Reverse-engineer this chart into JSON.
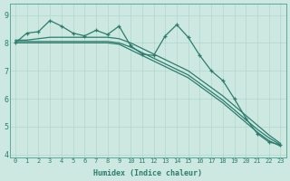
{
  "xlabel": "Humidex (Indice chaleur)",
  "bg_color": "#cce8e0",
  "line_color": "#2d7d6e",
  "grid_color": "#b0d8cc",
  "xlim": [
    -0.5,
    23.5
  ],
  "ylim": [
    3.9,
    9.4
  ],
  "yticks": [
    4,
    5,
    6,
    7,
    8,
    9
  ],
  "xticks": [
    0,
    1,
    2,
    3,
    4,
    5,
    6,
    7,
    8,
    9,
    10,
    11,
    12,
    13,
    14,
    15,
    16,
    17,
    18,
    19,
    20,
    21,
    22,
    23
  ],
  "series_jagged": [
    8.0,
    8.35,
    8.4,
    8.8,
    8.6,
    8.35,
    8.25,
    8.45,
    8.3,
    8.6,
    7.9,
    7.6,
    7.55,
    8.25,
    8.65,
    8.2,
    7.55,
    7.0,
    6.65,
    6.0,
    5.3,
    4.75,
    4.45,
    4.35
  ],
  "series_linear1": [
    8.05,
    8.05,
    8.05,
    8.05,
    8.05,
    8.05,
    8.05,
    8.05,
    8.05,
    8.0,
    7.85,
    7.65,
    7.45,
    7.25,
    7.05,
    6.85,
    6.55,
    6.25,
    5.95,
    5.6,
    5.25,
    4.9,
    4.6,
    4.35
  ],
  "series_linear2": [
    8.1,
    8.1,
    8.15,
    8.2,
    8.2,
    8.2,
    8.2,
    8.2,
    8.2,
    8.15,
    8.0,
    7.8,
    7.6,
    7.4,
    7.2,
    7.0,
    6.7,
    6.4,
    6.1,
    5.75,
    5.4,
    5.05,
    4.7,
    4.4
  ],
  "series_linear3": [
    8.0,
    8.0,
    8.0,
    8.0,
    8.0,
    8.0,
    8.0,
    8.0,
    8.0,
    7.95,
    7.75,
    7.55,
    7.35,
    7.15,
    6.95,
    6.75,
    6.45,
    6.15,
    5.85,
    5.5,
    5.15,
    4.8,
    4.5,
    4.3
  ]
}
